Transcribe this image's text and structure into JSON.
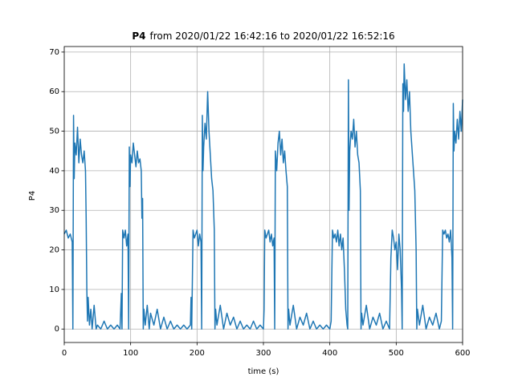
{
  "chart_data": {
    "type": "line",
    "title_bold": "P4",
    "title": "from 2020/01/22 16:42:16 to 2020/01/22 16:52:16",
    "x_label": "time (s)",
    "y_label": "P4",
    "xlim": [
      0,
      600
    ],
    "ylim": [
      -3.4,
      71.4
    ],
    "xticks": [
      0,
      100,
      200,
      300,
      400,
      500,
      600
    ],
    "yticks": [
      0,
      10,
      20,
      30,
      40,
      50,
      60,
      70
    ],
    "grid": true,
    "x": [
      0,
      3,
      6,
      9,
      12,
      13,
      14,
      15,
      16,
      18,
      20,
      22,
      24,
      26,
      28,
      30,
      32,
      33,
      34,
      35,
      36,
      38,
      40,
      42,
      45,
      48,
      50,
      55,
      60,
      65,
      70,
      75,
      80,
      84,
      86,
      87,
      88,
      90,
      92,
      94,
      96,
      97,
      98,
      99,
      100,
      102,
      104,
      106,
      108,
      110,
      112,
      114,
      116,
      117,
      118,
      119,
      120,
      122,
      125,
      128,
      130,
      135,
      140,
      145,
      150,
      155,
      160,
      165,
      170,
      175,
      180,
      185,
      190,
      191,
      192,
      194,
      196,
      198,
      200,
      202,
      204,
      206,
      207,
      208,
      209,
      210,
      212,
      214,
      216,
      218,
      220,
      222,
      224,
      226,
      227,
      228,
      230,
      235,
      240,
      245,
      250,
      255,
      260,
      265,
      270,
      275,
      280,
      285,
      290,
      295,
      300,
      301,
      302,
      304,
      306,
      308,
      310,
      312,
      314,
      316,
      317,
      318,
      320,
      322,
      324,
      326,
      328,
      330,
      332,
      334,
      336,
      337,
      338,
      340,
      345,
      350,
      355,
      360,
      365,
      370,
      375,
      380,
      385,
      390,
      395,
      400,
      402,
      404,
      406,
      408,
      410,
      412,
      414,
      416,
      418,
      420,
      422,
      424,
      426,
      427,
      428,
      429,
      430,
      432,
      434,
      436,
      438,
      440,
      442,
      444,
      446,
      447,
      448,
      450,
      455,
      460,
      465,
      470,
      475,
      480,
      485,
      490,
      492,
      494,
      496,
      498,
      500,
      502,
      504,
      506,
      508,
      509,
      510,
      511,
      512,
      514,
      516,
      518,
      520,
      522,
      524,
      526,
      528,
      530,
      531,
      532,
      535,
      540,
      545,
      550,
      555,
      560,
      565,
      568,
      570,
      572,
      574,
      576,
      578,
      580,
      582,
      584,
      585,
      586,
      587,
      588,
      590,
      592,
      594,
      596,
      598,
      600
    ],
    "series": [
      {
        "color": "#1f77b4",
        "values": [
          24,
          25,
          23,
          24,
          22,
          0,
          54,
          38,
          47,
          44,
          51,
          42,
          48,
          44,
          42,
          45,
          40,
          28,
          10,
          2,
          8,
          1,
          5,
          0,
          6,
          0,
          1,
          0,
          2,
          0,
          1,
          0,
          1,
          0,
          9,
          0,
          25,
          23,
          25,
          21,
          24,
          0,
          46,
          36,
          44,
          42,
          47,
          44,
          41,
          45,
          42,
          43,
          40,
          28,
          33,
          0,
          5,
          1,
          6,
          0,
          4,
          1,
          5,
          0,
          3,
          0,
          2,
          0,
          1,
          0,
          1,
          0,
          1,
          8,
          0,
          25,
          23,
          24,
          25,
          21,
          24,
          22,
          0,
          54,
          40,
          46,
          52,
          48,
          60,
          50,
          44,
          38,
          35,
          25,
          0,
          5,
          1,
          6,
          0,
          4,
          1,
          3,
          0,
          2,
          0,
          1,
          0,
          2,
          0,
          1,
          0,
          5,
          25,
          23,
          24,
          25,
          22,
          24,
          21,
          23,
          0,
          45,
          40,
          47,
          50,
          44,
          48,
          42,
          45,
          40,
          36,
          0,
          5,
          1,
          6,
          0,
          3,
          1,
          4,
          0,
          2,
          0,
          1,
          0,
          1,
          0,
          2,
          25,
          23,
          24,
          22,
          25,
          21,
          24,
          20,
          23,
          15,
          5,
          1,
          0,
          63,
          30,
          45,
          50,
          48,
          53,
          46,
          50,
          44,
          42,
          35,
          0,
          4,
          1,
          6,
          0,
          3,
          1,
          4,
          0,
          2,
          0,
          18,
          25,
          23,
          20,
          22,
          15,
          24,
          20,
          10,
          0,
          62,
          55,
          67,
          58,
          63,
          55,
          60,
          50,
          45,
          40,
          35,
          20,
          0,
          5,
          1,
          6,
          0,
          3,
          1,
          4,
          0,
          2,
          25,
          24,
          25,
          23,
          24,
          22,
          25,
          18,
          0,
          57,
          45,
          50,
          47,
          53,
          48,
          55,
          50,
          58
        ]
      }
    ]
  }
}
